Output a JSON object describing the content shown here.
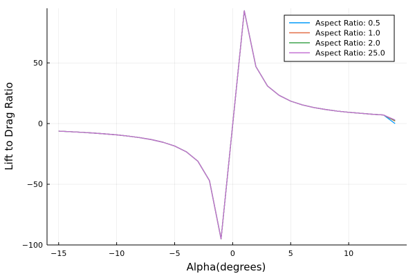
{
  "chart_data": {
    "type": "line",
    "xlabel": "Alpha(degrees)",
    "ylabel": "Lift to Drag Ratio",
    "xlim": [
      -16,
      15
    ],
    "ylim": [
      -100,
      95
    ],
    "x_ticks": [
      -15,
      -10,
      -5,
      0,
      5,
      10
    ],
    "y_ticks": [
      -100,
      -50,
      0,
      50
    ],
    "grid": true,
    "legend_position": "top-right",
    "x": [
      -15,
      -14,
      -13,
      -12,
      -11,
      -10,
      -9,
      -8,
      -7,
      -6,
      -5,
      -4,
      -3,
      -2,
      -1,
      1,
      2,
      3,
      4,
      5,
      6,
      7,
      8,
      9,
      10,
      11,
      12,
      13,
      14
    ],
    "series": [
      {
        "name": "Aspect Ratio: 0.5",
        "color": "#009AFA",
        "values": [
          -6.2,
          -6.7,
          -7.2,
          -7.8,
          -8.5,
          -9.3,
          -10.3,
          -11.6,
          -13.2,
          -15.4,
          -18.5,
          -23.2,
          -31.0,
          -47.0,
          -95.0,
          93.0,
          47.0,
          31.0,
          23.3,
          18.5,
          15.4,
          13.2,
          11.6,
          10.3,
          9.3,
          8.5,
          7.7,
          7.1,
          0.0
        ]
      },
      {
        "name": "Aspect Ratio: 1.0",
        "color": "#E36F47",
        "values": [
          -6.2,
          -6.7,
          -7.2,
          -7.8,
          -8.5,
          -9.3,
          -10.3,
          -11.6,
          -13.2,
          -15.4,
          -18.5,
          -23.2,
          -31.0,
          -47.0,
          -95.0,
          93.0,
          47.0,
          31.0,
          23.3,
          18.5,
          15.4,
          13.2,
          11.6,
          10.3,
          9.3,
          8.5,
          7.7,
          7.1,
          2.0
        ]
      },
      {
        "name": "Aspect Ratio: 2.0",
        "color": "#3EA44E",
        "values": [
          -6.2,
          -6.7,
          -7.2,
          -7.8,
          -8.5,
          -9.3,
          -10.3,
          -11.6,
          -13.2,
          -15.4,
          -18.5,
          -23.2,
          -31.0,
          -47.0,
          -95.0,
          93.0,
          47.0,
          31.0,
          23.3,
          18.5,
          15.4,
          13.2,
          11.6,
          10.3,
          9.3,
          8.5,
          7.7,
          7.1,
          2.5
        ]
      },
      {
        "name": "Aspect Ratio: 25.0",
        "color": "#C371D2",
        "values": [
          -6.2,
          -6.7,
          -7.2,
          -7.8,
          -8.5,
          -9.3,
          -10.3,
          -11.6,
          -13.2,
          -15.4,
          -18.5,
          -23.2,
          -31.0,
          -47.0,
          -95.0,
          93.0,
          47.0,
          31.0,
          23.3,
          18.5,
          15.4,
          13.2,
          11.6,
          10.3,
          9.3,
          8.5,
          7.7,
          7.1,
          3.0
        ]
      }
    ]
  }
}
